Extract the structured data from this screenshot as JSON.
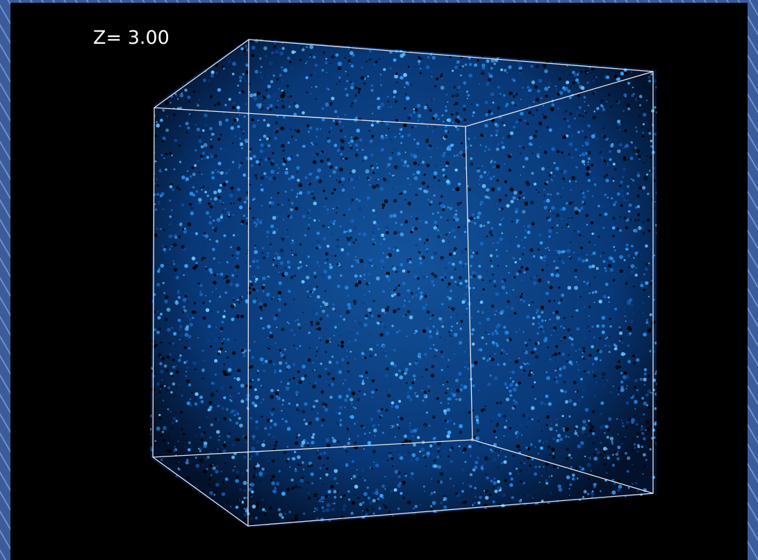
{
  "label": "Z= 3.00"
}
